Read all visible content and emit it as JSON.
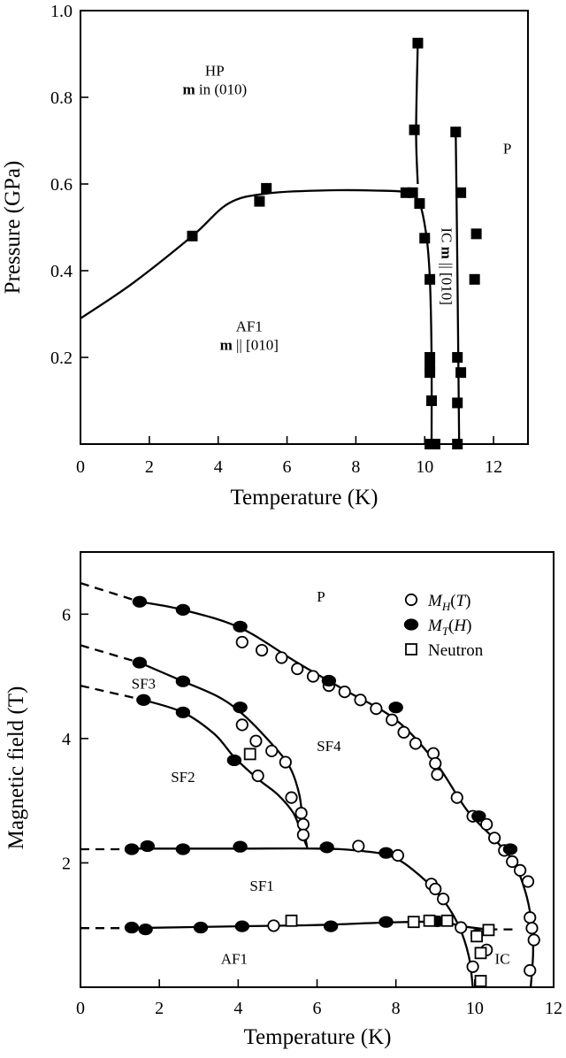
{
  "chart_data": [
    {
      "type": "scatter",
      "xlabel": "Temperature (K)",
      "ylabel": "Pressure (GPa)",
      "xlim": [
        0,
        13
      ],
      "ylim": [
        0,
        1.0
      ],
      "x_ticks": [
        "0",
        "2",
        "4",
        "6",
        "8",
        "10",
        "12"
      ],
      "y_ticks": [
        "0.2",
        "0.4",
        "0.6",
        "0.8",
        "1.0"
      ],
      "y_ticks_values": [
        0.2,
        0.4,
        0.6,
        0.8,
        1.0
      ],
      "x_ticks_values": [
        0,
        2,
        4,
        6,
        8,
        10,
        12
      ],
      "grid": false,
      "regions": [
        {
          "id": "hp",
          "lines": [
            "HP",
            "m in (010)"
          ],
          "bold_prefix": "m",
          "x": 3.9,
          "y": 0.85
        },
        {
          "id": "af1",
          "lines": [
            "AF1",
            "m || [010]"
          ],
          "bold_prefix": "m",
          "x": 4.9,
          "y": 0.26
        },
        {
          "id": "p",
          "lines": [
            "P"
          ],
          "x": 12.4,
          "y": 0.67
        },
        {
          "id": "ic",
          "lines": [
            "IC m || [010]"
          ],
          "bold_prefix": "m",
          "x": 10.5,
          "y": 0.41,
          "rotate": 90
        }
      ],
      "series": [
        {
          "marker": "filled-square",
          "points": [
            [
              3.25,
              0.48
            ],
            [
              5.4,
              0.59
            ],
            [
              5.2,
              0.56
            ],
            [
              9.45,
              0.58
            ],
            [
              9.65,
              0.58
            ],
            [
              9.8,
              0.925
            ],
            [
              9.7,
              0.725
            ],
            [
              9.85,
              0.555
            ],
            [
              10.0,
              0.475
            ],
            [
              10.15,
              0.38
            ],
            [
              10.15,
              0.2
            ],
            [
              10.15,
              0.18
            ],
            [
              10.15,
              0.165
            ],
            [
              10.2,
              0.1
            ],
            [
              10.15,
              0.0
            ],
            [
              10.3,
              0.0
            ],
            [
              10.9,
              0.72
            ],
            [
              11.05,
              0.58
            ],
            [
              10.95,
              0.2
            ],
            [
              11.05,
              0.165
            ],
            [
              10.95,
              0.095
            ],
            [
              10.95,
              0.0
            ],
            [
              11.5,
              0.485
            ],
            [
              11.45,
              0.38
            ]
          ]
        }
      ],
      "curves": [
        {
          "id": "af1-hp-boundary",
          "points": [
            [
              0,
              0.29
            ],
            [
              1.5,
              0.37
            ],
            [
              3.25,
              0.48
            ],
            [
              4.3,
              0.555
            ],
            [
              5.4,
              0.578
            ],
            [
              7.0,
              0.585
            ],
            [
              8.5,
              0.585
            ],
            [
              9.5,
              0.58
            ],
            [
              9.85,
              0.555
            ],
            [
              10.05,
              0.48
            ],
            [
              10.15,
              0.38
            ],
            [
              10.2,
              0.2
            ],
            [
              10.2,
              0.0
            ]
          ]
        },
        {
          "id": "hp-upper-line",
          "points": [
            [
              9.8,
              0.925
            ],
            [
              9.75,
              0.72
            ],
            [
              9.8,
              0.6
            ]
          ]
        },
        {
          "id": "ic-p-line",
          "points": [
            [
              10.9,
              0.72
            ],
            [
              10.95,
              0.4
            ],
            [
              11.0,
              0.0
            ]
          ]
        }
      ]
    },
    {
      "type": "scatter",
      "xlabel": "Temperature (K)",
      "ylabel": "Magnetic field (T)",
      "xlim": [
        0,
        12
      ],
      "ylim": [
        0,
        7
      ],
      "x_ticks": [
        "0",
        "2",
        "4",
        "6",
        "8",
        "10",
        "12"
      ],
      "y_ticks": [
        "2",
        "4",
        "6"
      ],
      "y_ticks_values": [
        2,
        4,
        6
      ],
      "x_ticks_values": [
        0,
        2,
        4,
        6,
        8,
        10,
        12
      ],
      "grid": false,
      "legend": {
        "position": "top-right",
        "entries": [
          {
            "marker": "open-circle",
            "label": "M",
            "sub": "H",
            "suffix": "(T)"
          },
          {
            "marker": "filled-circle",
            "label": "M",
            "sub": "T",
            "suffix": "(H)"
          },
          {
            "marker": "open-square",
            "label": "Neutron"
          }
        ]
      },
      "regions": [
        {
          "id": "p",
          "lines": [
            "P"
          ],
          "x": 6.1,
          "y": 6.2
        },
        {
          "id": "sf3",
          "lines": [
            "SF3"
          ],
          "x": 1.6,
          "y": 4.8
        },
        {
          "id": "sf4",
          "lines": [
            "SF4"
          ],
          "x": 6.3,
          "y": 3.8
        },
        {
          "id": "sf2",
          "lines": [
            "SF2"
          ],
          "x": 2.6,
          "y": 3.3
        },
        {
          "id": "sf1",
          "lines": [
            "SF1"
          ],
          "x": 4.6,
          "y": 1.55
        },
        {
          "id": "af1",
          "lines": [
            "AF1"
          ],
          "x": 3.9,
          "y": 0.38
        },
        {
          "id": "ic",
          "lines": [
            "IC"
          ],
          "x": 10.7,
          "y": 0.38
        }
      ],
      "series": [
        {
          "name": "M_H(T)",
          "marker": "open-circle",
          "points": [
            [
              4.1,
              5.55
            ],
            [
              4.6,
              5.42
            ],
            [
              5.1,
              5.3
            ],
            [
              5.5,
              5.12
            ],
            [
              5.9,
              5.0
            ],
            [
              6.3,
              4.85
            ],
            [
              6.7,
              4.75
            ],
            [
              7.1,
              4.62
            ],
            [
              7.5,
              4.48
            ],
            [
              7.9,
              4.3
            ],
            [
              8.2,
              4.1
            ],
            [
              8.5,
              3.92
            ],
            [
              8.95,
              3.76
            ],
            [
              9.0,
              3.6
            ],
            [
              9.05,
              3.42
            ],
            [
              9.55,
              3.05
            ],
            [
              9.95,
              2.75
            ],
            [
              10.3,
              2.62
            ],
            [
              10.5,
              2.4
            ],
            [
              10.75,
              2.2
            ],
            [
              10.95,
              2.02
            ],
            [
              11.15,
              1.88
            ],
            [
              11.35,
              1.7
            ],
            [
              11.4,
              1.12
            ],
            [
              11.45,
              0.95
            ],
            [
              11.5,
              0.76
            ],
            [
              11.4,
              0.27
            ],
            [
              4.1,
              4.22
            ],
            [
              4.45,
              3.96
            ],
            [
              4.85,
              3.8
            ],
            [
              5.2,
              3.62
            ],
            [
              4.5,
              3.4
            ],
            [
              5.35,
              3.05
            ],
            [
              5.6,
              2.8
            ],
            [
              5.65,
              2.62
            ],
            [
              5.65,
              2.45
            ],
            [
              7.05,
              2.27
            ],
            [
              8.05,
              2.12
            ],
            [
              8.9,
              1.66
            ],
            [
              9.0,
              1.58
            ],
            [
              9.2,
              1.42
            ],
            [
              4.9,
              0.99
            ],
            [
              9.65,
              0.96
            ],
            [
              10.05,
              0.84
            ],
            [
              10.3,
              0.6
            ],
            [
              9.95,
              0.33
            ]
          ]
        },
        {
          "name": "M_T(H)",
          "marker": "filled-circle",
          "points": [
            [
              1.5,
              6.2
            ],
            [
              2.6,
              6.07
            ],
            [
              4.05,
              5.8
            ],
            [
              6.3,
              4.93
            ],
            [
              8.0,
              4.5
            ],
            [
              1.5,
              5.22
            ],
            [
              2.6,
              4.92
            ],
            [
              4.05,
              4.5
            ],
            [
              1.6,
              4.62
            ],
            [
              2.6,
              4.42
            ],
            [
              3.9,
              3.65
            ],
            [
              1.3,
              2.22
            ],
            [
              1.7,
              2.27
            ],
            [
              2.6,
              2.22
            ],
            [
              4.05,
              2.26
            ],
            [
              6.25,
              2.25
            ],
            [
              7.75,
              2.16
            ],
            [
              10.1,
              2.75
            ],
            [
              10.9,
              2.22
            ],
            [
              1.3,
              0.96
            ],
            [
              1.65,
              0.93
            ],
            [
              3.05,
              0.96
            ],
            [
              4.1,
              0.98
            ],
            [
              6.35,
              0.98
            ],
            [
              7.75,
              1.05
            ],
            [
              9.05,
              1.06
            ]
          ]
        },
        {
          "name": "Neutron",
          "marker": "open-square",
          "points": [
            [
              4.3,
              3.75
            ],
            [
              5.35,
              1.07
            ],
            [
              8.45,
              1.05
            ],
            [
              8.85,
              1.07
            ],
            [
              9.3,
              1.07
            ],
            [
              10.05,
              0.82
            ],
            [
              10.35,
              0.92
            ],
            [
              10.15,
              0.55
            ],
            [
              10.15,
              0.1
            ]
          ]
        }
      ],
      "curves": [
        {
          "id": "p-boundary",
          "points": [
            [
              1.5,
              6.2
            ],
            [
              2.6,
              6.07
            ],
            [
              4.05,
              5.78
            ],
            [
              5.5,
              5.22
            ],
            [
              6.7,
              4.78
            ],
            [
              8.0,
              4.3
            ],
            [
              9.0,
              3.62
            ],
            [
              9.8,
              2.85
            ],
            [
              10.5,
              2.38
            ],
            [
              11.0,
              2.0
            ],
            [
              11.3,
              1.5
            ],
            [
              11.45,
              1.0
            ],
            [
              11.48,
              0.55
            ],
            [
              11.42,
              0.0
            ]
          ]
        },
        {
          "id": "sf3-sf4-boundary",
          "points": [
            [
              1.5,
              5.22
            ],
            [
              2.6,
              4.92
            ],
            [
              3.5,
              4.67
            ],
            [
              4.1,
              4.4
            ],
            [
              4.8,
              3.95
            ],
            [
              5.3,
              3.55
            ],
            [
              5.55,
              3.1
            ],
            [
              5.65,
              2.6
            ],
            [
              5.75,
              2.25
            ]
          ]
        },
        {
          "id": "sf2-boundary",
          "points": [
            [
              1.6,
              4.62
            ],
            [
              2.6,
              4.42
            ],
            [
              3.4,
              4.07
            ],
            [
              3.9,
              3.7
            ],
            [
              4.5,
              3.35
            ],
            [
              5.0,
              3.1
            ],
            [
              5.4,
              2.8
            ],
            [
              5.62,
              2.45
            ],
            [
              5.75,
              2.25
            ]
          ]
        },
        {
          "id": "sf1-boundary",
          "points": [
            [
              1.3,
              2.23
            ],
            [
              4.0,
              2.23
            ],
            [
              6.0,
              2.23
            ],
            [
              7.0,
              2.2
            ],
            [
              7.9,
              2.1
            ],
            [
              8.6,
              1.8
            ],
            [
              9.2,
              1.4
            ],
            [
              9.6,
              0.98
            ],
            [
              9.85,
              0.5
            ],
            [
              9.95,
              0.0
            ]
          ]
        },
        {
          "id": "af1-boundary",
          "points": [
            [
              1.3,
              0.95
            ],
            [
              4.0,
              0.98
            ],
            [
              6.0,
              1.0
            ],
            [
              7.75,
              1.04
            ],
            [
              9.05,
              1.05
            ],
            [
              9.8,
              0.97
            ],
            [
              10.35,
              0.93
            ]
          ]
        }
      ],
      "dashed_extrapolations": [
        {
          "points": [
            [
              0,
              6.5
            ],
            [
              1.5,
              6.2
            ]
          ]
        },
        {
          "points": [
            [
              0,
              5.5
            ],
            [
              1.5,
              5.22
            ]
          ]
        },
        {
          "points": [
            [
              0,
              4.85
            ],
            [
              1.6,
              4.62
            ]
          ]
        },
        {
          "points": [
            [
              0,
              2.22
            ],
            [
              1.3,
              2.22
            ]
          ]
        },
        {
          "points": [
            [
              0,
              0.95
            ],
            [
              1.3,
              0.95
            ]
          ]
        },
        {
          "points": [
            [
              10.35,
              0.93
            ],
            [
              11.0,
              0.93
            ]
          ]
        }
      ]
    }
  ]
}
